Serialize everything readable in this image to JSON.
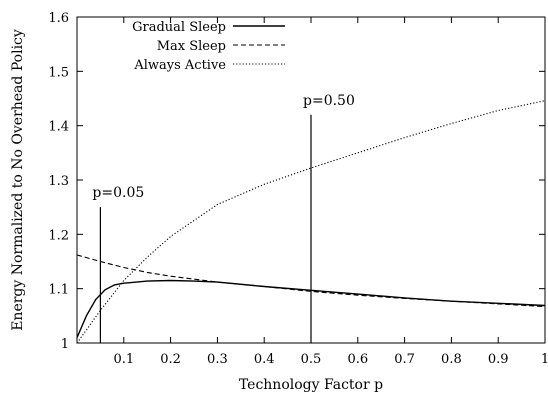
{
  "chart_data": {
    "type": "line",
    "title": "",
    "xlabel": "Technology Factor p",
    "ylabel": "Energy Normalized to No Overhead Policy",
    "xlim": [
      0.0,
      1.0
    ],
    "ylim": [
      1.0,
      1.6
    ],
    "x_ticks": [
      0.1,
      0.2,
      0.3,
      0.4,
      0.5,
      0.6,
      0.7,
      0.8,
      0.9,
      1.0
    ],
    "x_tick_labels": [
      "0.1",
      "0.2",
      "0.3",
      "0.4",
      "0.5",
      "0.6",
      "0.7",
      "0.8",
      "0.9",
      "1"
    ],
    "y_ticks": [
      1.0,
      1.1,
      1.2,
      1.3,
      1.4,
      1.5,
      1.6
    ],
    "y_tick_labels": [
      "1",
      "1.1",
      "1.2",
      "1.3",
      "1.4",
      "1.5",
      "1.6"
    ],
    "grid": false,
    "legend_position": "top-left",
    "series": [
      {
        "name": "Gradual Sleep",
        "style": "solid",
        "color": "#000000",
        "x": [
          0.0,
          0.02,
          0.04,
          0.06,
          0.08,
          0.1,
          0.15,
          0.2,
          0.25,
          0.3,
          0.4,
          0.5,
          0.6,
          0.7,
          0.8,
          0.9,
          1.0
        ],
        "y": [
          1.01,
          1.05,
          1.08,
          1.098,
          1.107,
          1.11,
          1.114,
          1.115,
          1.114,
          1.112,
          1.104,
          1.097,
          1.09,
          1.083,
          1.077,
          1.073,
          1.069
        ]
      },
      {
        "name": "Max Sleep",
        "style": "dashed",
        "color": "#000000",
        "x": [
          0.0,
          0.05,
          0.1,
          0.15,
          0.2,
          0.3,
          0.4,
          0.5,
          0.6,
          0.7,
          0.8,
          0.9,
          1.0
        ],
        "y": [
          1.162,
          1.15,
          1.139,
          1.13,
          1.123,
          1.112,
          1.104,
          1.095,
          1.088,
          1.082,
          1.077,
          1.072,
          1.067
        ]
      },
      {
        "name": "Always Active",
        "style": "dotted",
        "color": "#000000",
        "x": [
          0.0,
          0.05,
          0.1,
          0.15,
          0.2,
          0.3,
          0.4,
          0.5,
          0.6,
          0.7,
          0.8,
          0.9,
          1.0
        ],
        "y": [
          1.0,
          1.06,
          1.115,
          1.158,
          1.196,
          1.255,
          1.292,
          1.322,
          1.35,
          1.378,
          1.404,
          1.428,
          1.446
        ]
      }
    ],
    "annotations": [
      {
        "label": "p=0.05",
        "x": 0.05,
        "y_from": 1.0,
        "y_to": 1.25
      },
      {
        "label": "p=0.50",
        "x": 0.5,
        "y_from": 1.0,
        "y_to": 1.42
      }
    ]
  }
}
